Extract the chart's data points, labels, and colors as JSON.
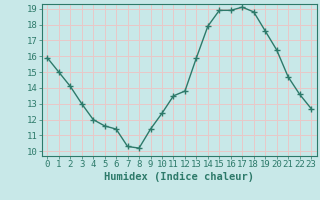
{
  "xlabel": "Humidex (Indice chaleur)",
  "ylabel": "",
  "x": [
    0,
    1,
    2,
    3,
    4,
    5,
    6,
    7,
    8,
    9,
    10,
    11,
    12,
    13,
    14,
    15,
    16,
    17,
    18,
    19,
    20,
    21,
    22,
    23
  ],
  "y": [
    15.9,
    15.0,
    14.1,
    13.0,
    12.0,
    11.6,
    11.4,
    10.3,
    10.2,
    11.4,
    12.4,
    13.5,
    13.8,
    15.9,
    17.9,
    18.9,
    18.9,
    19.1,
    18.8,
    17.6,
    16.4,
    14.7,
    13.6,
    12.7
  ],
  "line_color": "#2d7a6a",
  "marker": "+",
  "marker_size": 4,
  "marker_linewidth": 1.0,
  "line_width": 1.0,
  "bg_color": "#c8e8e8",
  "grid_color": "#e8c8c8",
  "ylim_min": 10,
  "ylim_max": 19,
  "xlim_min": -0.5,
  "xlim_max": 23.5,
  "yticks": [
    10,
    11,
    12,
    13,
    14,
    15,
    16,
    17,
    18,
    19
  ],
  "xticks": [
    0,
    1,
    2,
    3,
    4,
    5,
    6,
    7,
    8,
    9,
    10,
    11,
    12,
    13,
    14,
    15,
    16,
    17,
    18,
    19,
    20,
    21,
    22,
    23
  ],
  "tick_color": "#2d7a6a",
  "label_fontsize": 6.5,
  "xlabel_fontsize": 7.5,
  "spine_color": "#2d7a6a"
}
